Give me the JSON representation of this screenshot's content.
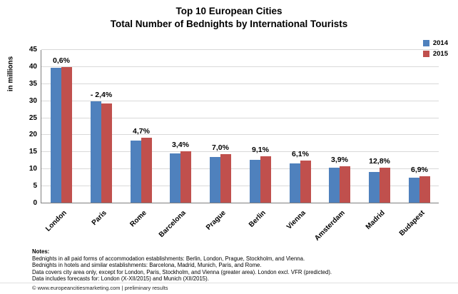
{
  "chart_data": {
    "type": "bar",
    "title": "Top 10 European Cities",
    "subtitle": "Total Number of Bednights by International Tourists",
    "ylabel": "in millions",
    "xlabel": "",
    "ylim": [
      0,
      45
    ],
    "ytick_step": 5,
    "grid": true,
    "legend_position": "top-right",
    "categories": [
      "London",
      "Paris",
      "Rome",
      "Barcelona",
      "Prague",
      "Berlin",
      "Vienna",
      "Amsterdam",
      "Madrid",
      "Budapest"
    ],
    "series": [
      {
        "name": "2014",
        "color": "#4F81BD",
        "values": [
          39.5,
          29.8,
          18.2,
          14.5,
          13.3,
          12.5,
          11.6,
          10.2,
          9.1,
          7.3
        ]
      },
      {
        "name": "2015",
        "color": "#C0504D",
        "values": [
          39.8,
          29.1,
          19.0,
          15.0,
          14.2,
          13.6,
          12.3,
          10.6,
          10.3,
          7.8
        ]
      }
    ],
    "bar_labels": [
      "0,6%",
      "- 2,4%",
      "4,7%",
      "3,4%",
      "7,0%",
      "9,1%",
      "6,1%",
      "3,9%",
      "12,8%",
      "6,9%"
    ]
  },
  "notes": {
    "heading": "Notes:",
    "lines": [
      "Bednights in all paid forms of accommodation establishments: Berlin, London, Prague, Stockholm, and Vienna.",
      "Bednights in hotels and similar establishments: Barcelona, Madrid, Munich, Paris, and Rome.",
      "Data covers city area only, except for London, Paris, Stockholm, and Vienna (greater area). London excl. VFR (predicted).",
      "Data includes forecasts for: London (X-XII/2015) and Munich (XII/2015)."
    ]
  },
  "footer": "© www.europeancitiesmarketing.com | preliminary results"
}
